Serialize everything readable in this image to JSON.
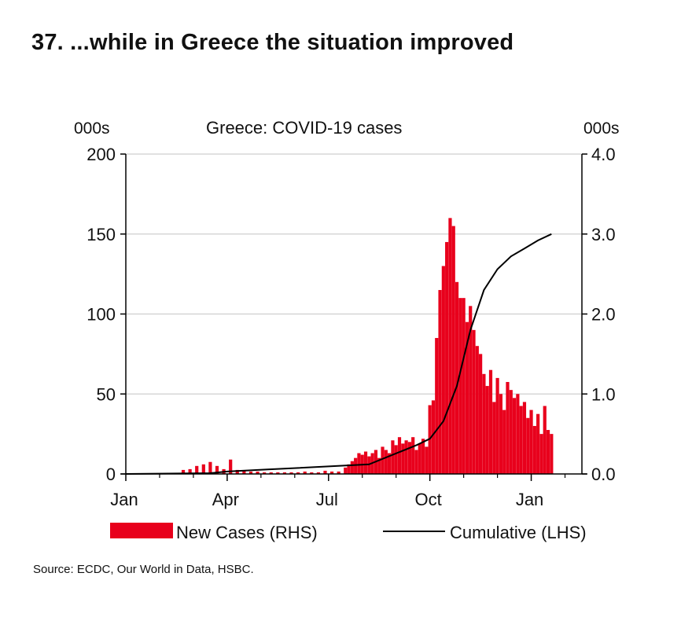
{
  "page": {
    "heading": "37. ...while in Greece the situation improved",
    "source": "Source: ECDC, Our World in Data, HSBC."
  },
  "chart_data": {
    "type": "bar",
    "title": "Greece: COVID-19 cases",
    "left_axis": {
      "unit_label": "000s",
      "range": [
        0,
        200
      ],
      "ticks": [
        "200",
        "150",
        "100",
        "50",
        "0"
      ],
      "tick_values": [
        200,
        150,
        100,
        50,
        0
      ]
    },
    "right_axis": {
      "unit_label": "000s",
      "range": [
        0,
        4
      ],
      "ticks": [
        "4.0",
        "3.0",
        "2.0",
        "1.0",
        "0.0"
      ],
      "tick_values": [
        4,
        3,
        2,
        1,
        0
      ]
    },
    "x_axis": {
      "range_months": [
        0,
        13.5
      ],
      "tick_labels": [
        "Jan",
        "Apr",
        "Jul",
        "Oct",
        "Jan"
      ],
      "tick_months": [
        0,
        3,
        6,
        9,
        12
      ],
      "minor_tick_months": [
        1,
        2,
        4,
        5,
        7,
        8,
        10,
        11,
        13
      ]
    },
    "gridlines": true,
    "legend": {
      "placement": "bottom",
      "new_cases_label": "New Cases (RHS)",
      "cumulative_label": "Cumulative (LHS)"
    },
    "series": [
      {
        "name": "New Cases (RHS)",
        "axis": "right",
        "kind": "bar",
        "color": "#e8001c",
        "x_months": [
          1.7,
          1.9,
          2.1,
          2.3,
          2.5,
          2.7,
          2.9,
          3.1,
          3.3,
          3.5,
          3.7,
          3.9,
          4.1,
          4.3,
          4.5,
          4.7,
          4.9,
          5.1,
          5.3,
          5.5,
          5.7,
          5.9,
          6.1,
          6.3,
          6.5,
          6.6,
          6.7,
          6.8,
          6.9,
          7.0,
          7.1,
          7.2,
          7.3,
          7.4,
          7.5,
          7.6,
          7.7,
          7.8,
          7.9,
          8.0,
          8.1,
          8.2,
          8.3,
          8.4,
          8.5,
          8.6,
          8.7,
          8.8,
          8.9,
          9.0,
          9.1,
          9.2,
          9.3,
          9.4,
          9.5,
          9.6,
          9.7,
          9.8,
          9.9,
          10.0,
          10.1,
          10.2,
          10.3,
          10.4,
          10.5,
          10.6,
          10.7,
          10.8,
          10.9,
          11.0,
          11.1,
          11.2,
          11.3,
          11.4,
          11.5,
          11.6,
          11.7,
          11.8,
          11.9,
          12.0,
          12.1,
          12.2,
          12.3,
          12.4,
          12.5,
          12.6
        ],
        "values": [
          0.05,
          0.06,
          0.1,
          0.12,
          0.15,
          0.1,
          0.06,
          0.18,
          0.05,
          0.04,
          0.03,
          0.03,
          0.02,
          0.02,
          0.02,
          0.02,
          0.02,
          0.02,
          0.03,
          0.02,
          0.02,
          0.04,
          0.03,
          0.03,
          0.08,
          0.12,
          0.16,
          0.2,
          0.26,
          0.24,
          0.28,
          0.22,
          0.26,
          0.3,
          0.2,
          0.34,
          0.3,
          0.26,
          0.42,
          0.36,
          0.46,
          0.38,
          0.42,
          0.4,
          0.46,
          0.3,
          0.38,
          0.44,
          0.34,
          0.86,
          0.92,
          1.7,
          2.3,
          2.6,
          2.9,
          3.2,
          3.1,
          2.4,
          2.2,
          2.2,
          1.9,
          2.1,
          1.8,
          1.6,
          1.5,
          1.25,
          1.1,
          1.3,
          0.9,
          1.2,
          1.0,
          0.8,
          1.15,
          1.05,
          0.95,
          1.0,
          0.85,
          0.9,
          0.7,
          0.8,
          0.6,
          0.75,
          0.5,
          0.85,
          0.55,
          0.5
        ]
      },
      {
        "name": "Cumulative (LHS)",
        "axis": "left",
        "kind": "line",
        "color": "#000000",
        "x_months": [
          0,
          2.5,
          3.0,
          4.2,
          7.2,
          8.6,
          9.0,
          9.4,
          9.8,
          10.2,
          10.6,
          11.0,
          11.4,
          11.8,
          12.2,
          12.6
        ],
        "values": [
          0,
          0.5,
          1.5,
          2.8,
          6,
          18,
          22,
          33,
          55,
          90,
          115,
          128,
          136,
          141,
          146,
          150
        ]
      }
    ]
  }
}
